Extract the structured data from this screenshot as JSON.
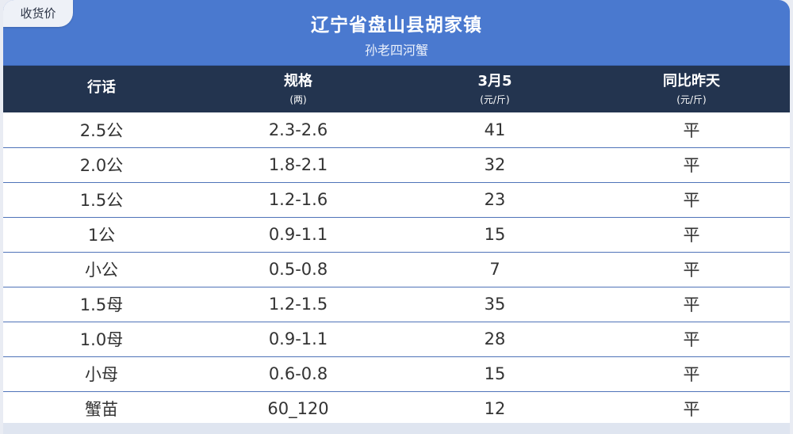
{
  "tag": "收货价",
  "title": "辽宁省盘山县胡家镇",
  "subtitle": "孙老四河蟹",
  "headers": [
    {
      "main": "行话",
      "unit": ""
    },
    {
      "main": "规格",
      "unit": "(两)"
    },
    {
      "main": "3月5",
      "unit": "(元/斤)"
    },
    {
      "main": "同比昨天",
      "unit": "(元/斤)"
    }
  ],
  "rows": [
    [
      "2.5公",
      "2.3-2.6",
      "41",
      "平"
    ],
    [
      "2.0公",
      "1.8-2.1",
      "32",
      "平"
    ],
    [
      "1.5公",
      "1.2-1.6",
      "23",
      "平"
    ],
    [
      "1公",
      "0.9-1.1",
      "15",
      "平"
    ],
    [
      "小公",
      "0.5-0.8",
      "7",
      "平"
    ],
    [
      "1.5母",
      "1.2-1.5",
      "35",
      "平"
    ],
    [
      "1.0母",
      "0.9-1.1",
      "28",
      "平"
    ],
    [
      "小母",
      "0.6-0.8",
      "15",
      "平"
    ],
    [
      "蟹苗",
      "60_120",
      "12",
      "平"
    ]
  ],
  "colors": {
    "banner": "#4a79cf",
    "header_row": "#23344f",
    "row_divider": "#4f73b8"
  }
}
